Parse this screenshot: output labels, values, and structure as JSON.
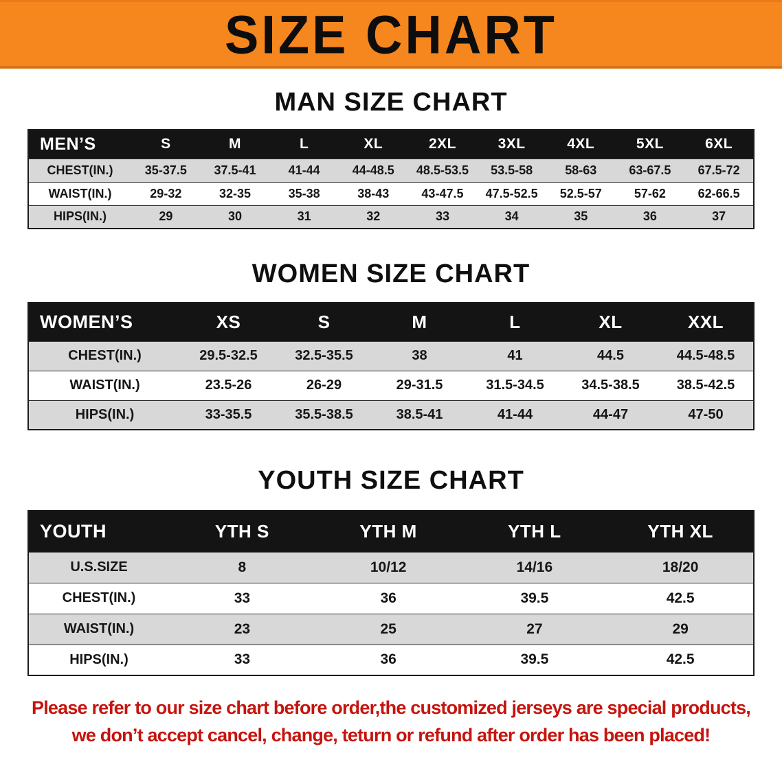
{
  "banner": {
    "title": "SIZE CHART",
    "bg_color": "#F6861E"
  },
  "colors": {
    "table_header_bg": "#141414",
    "row_stripe": "#d8d8d8",
    "disclaimer_red": "#C5140E"
  },
  "sections": [
    {
      "id": "men",
      "heading": "MAN SIZE CHART",
      "table": {
        "header": [
          "MEN’S",
          "S",
          "M",
          "L",
          "XL",
          "2XL",
          "3XL",
          "4XL",
          "5XL",
          "6XL"
        ],
        "rows": [
          [
            "CHEST(IN.)",
            "35-37.5",
            "37.5-41",
            "41-44",
            "44-48.5",
            "48.5-53.5",
            "53.5-58",
            "58-63",
            "63-67.5",
            "67.5-72"
          ],
          [
            "WAIST(IN.)",
            "29-32",
            "32-35",
            "35-38",
            "38-43",
            "43-47.5",
            "47.5-52.5",
            "52.5-57",
            "57-62",
            "62-66.5"
          ],
          [
            "HIPS(IN.)",
            "29",
            "30",
            "31",
            "32",
            "33",
            "34",
            "35",
            "36",
            "37"
          ]
        ]
      }
    },
    {
      "id": "women",
      "heading": "WOMEN SIZE CHART",
      "table": {
        "header": [
          "WOMEN’S",
          "XS",
          "S",
          "M",
          "L",
          "XL",
          "XXL"
        ],
        "rows": [
          [
            "CHEST(IN.)",
            "29.5-32.5",
            "32.5-35.5",
            "38",
            "41",
            "44.5",
            "44.5-48.5"
          ],
          [
            "WAIST(IN.)",
            "23.5-26",
            "26-29",
            "29-31.5",
            "31.5-34.5",
            "34.5-38.5",
            "38.5-42.5"
          ],
          [
            "HIPS(IN.)",
            "33-35.5",
            "35.5-38.5",
            "38.5-41",
            "41-44",
            "44-47",
            "47-50"
          ]
        ]
      }
    },
    {
      "id": "youth",
      "heading": "YOUTH SIZE CHART",
      "table": {
        "header": [
          "YOUTH",
          "YTH S",
          "YTH M",
          "YTH L",
          "YTH XL"
        ],
        "rows": [
          [
            "U.S.SIZE",
            "8",
            "10/12",
            "14/16",
            "18/20"
          ],
          [
            "CHEST(IN.)",
            "33",
            "36",
            "39.5",
            "42.5"
          ],
          [
            "WAIST(IN.)",
            "23",
            "25",
            "27",
            "29"
          ],
          [
            "HIPS(IN.)",
            "33",
            "36",
            "39.5",
            "42.5"
          ]
        ]
      }
    }
  ],
  "disclaimer": {
    "line1": "Please refer to our size chart before order,the customized jerseys are special products,",
    "line2": "we don’t accept cancel, change, teturn or refund after order has been placed!"
  }
}
